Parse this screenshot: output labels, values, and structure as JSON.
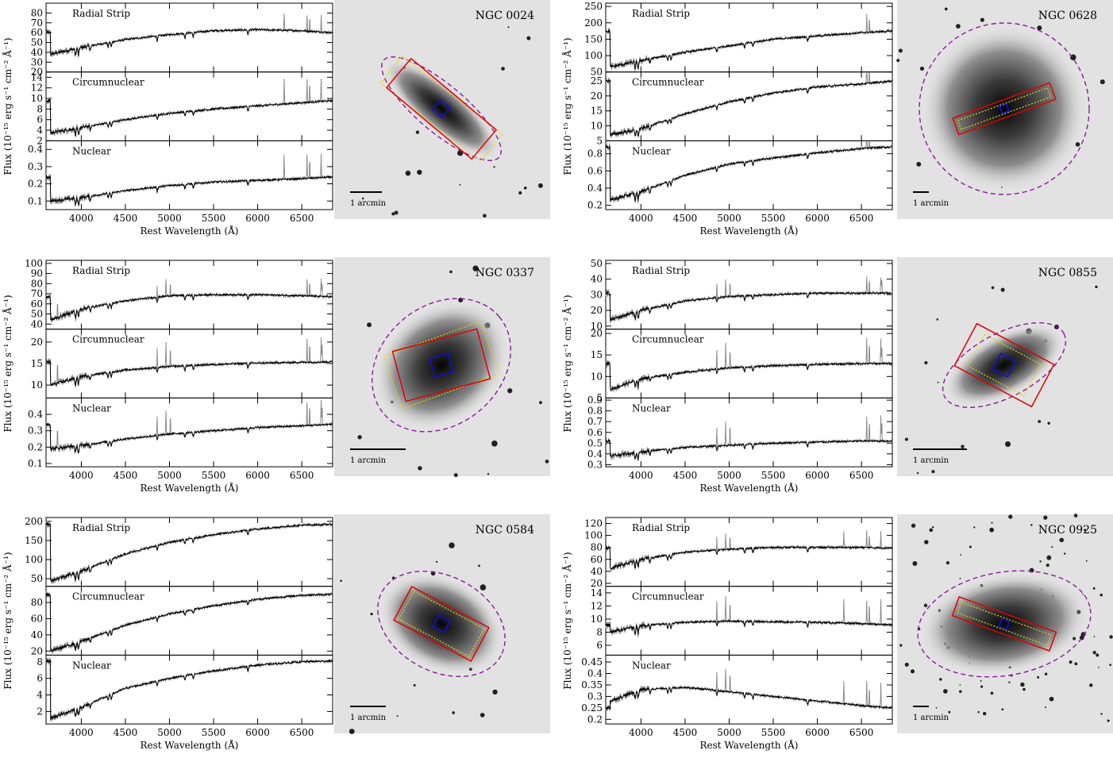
{
  "figure": {
    "ylabel": "Flux (10⁻¹⁵ erg s⁻¹ cm⁻² Å⁻¹)",
    "xlabel": "Rest Wavelength (Å)",
    "scale_label": "1 arcmin"
  },
  "chart_data": [
    {
      "type": "line",
      "galaxy": "NGC 0024",
      "xlabel": "Rest Wavelength (Å)",
      "ylabel": "Flux (10⁻¹⁵ erg s⁻¹ cm⁻² Å⁻¹)",
      "xlim": [
        3600,
        6850
      ],
      "xticks": [
        4000,
        4500,
        5000,
        5500,
        6000,
        6500
      ],
      "panels": [
        {
          "name": "Radial Strip",
          "ylim": [
            20,
            90
          ],
          "yticks": [
            20,
            30,
            40,
            50,
            60,
            70,
            80
          ],
          "x": [
            3650,
            4000,
            4500,
            5000,
            5500,
            6000,
            6500,
            6850
          ],
          "y": [
            38,
            45,
            53,
            58,
            62,
            63,
            62,
            60
          ]
        },
        {
          "name": "Circumnuclear",
          "ylim": [
            2,
            15
          ],
          "yticks": [
            2,
            4,
            6,
            8,
            10,
            12,
            14
          ],
          "x": [
            3650,
            4000,
            4500,
            5000,
            5500,
            6000,
            6500,
            6850
          ],
          "y": [
            3.5,
            4.5,
            6.0,
            7.2,
            8.0,
            8.6,
            9.2,
            9.6
          ]
        },
        {
          "name": "Nuclear",
          "ylim": [
            0.05,
            0.45
          ],
          "yticks": [
            0.1,
            0.2,
            0.3,
            0.4
          ],
          "x": [
            3650,
            4000,
            4500,
            5000,
            5500,
            6000,
            6500,
            6850
          ],
          "y": [
            0.1,
            0.12,
            0.16,
            0.19,
            0.21,
            0.22,
            0.23,
            0.24
          ]
        }
      ]
    },
    {
      "type": "line",
      "galaxy": "NGC 0628",
      "xlabel": "Rest Wavelength (Å)",
      "ylabel": "Flux (10⁻¹⁵ erg s⁻¹ cm⁻² Å⁻¹)",
      "xlim": [
        3600,
        6850
      ],
      "xticks": [
        4000,
        4500,
        5000,
        5500,
        6000,
        6500
      ],
      "panels": [
        {
          "name": "Radial Strip",
          "ylim": [
            50,
            260
          ],
          "yticks": [
            50,
            100,
            150,
            200,
            250
          ],
          "x": [
            3650,
            4000,
            4500,
            5000,
            5500,
            6000,
            6500,
            6850
          ],
          "y": [
            65,
            85,
            110,
            130,
            150,
            160,
            170,
            175
          ]
        },
        {
          "name": "Circumnuclear",
          "ylim": [
            5,
            28
          ],
          "yticks": [
            5,
            10,
            15,
            20,
            25
          ],
          "x": [
            3650,
            4000,
            4500,
            5000,
            5500,
            6000,
            6500,
            6850
          ],
          "y": [
            7,
            9,
            14,
            18,
            21,
            23,
            24,
            25
          ]
        },
        {
          "name": "Nuclear",
          "ylim": [
            0.15,
            0.95
          ],
          "yticks": [
            0.2,
            0.4,
            0.6,
            0.8
          ],
          "x": [
            3650,
            4000,
            4500,
            5000,
            5500,
            6000,
            6500,
            6850
          ],
          "y": [
            0.26,
            0.36,
            0.55,
            0.68,
            0.75,
            0.81,
            0.86,
            0.88
          ]
        }
      ]
    },
    {
      "type": "line",
      "galaxy": "NGC 0337",
      "xlabel": "Rest Wavelength (Å)",
      "ylabel": "Flux (10⁻¹⁵ erg s⁻¹ cm⁻² Å⁻¹)",
      "xlim": [
        3600,
        6850
      ],
      "xticks": [
        4000,
        4500,
        5000,
        5500,
        6000,
        6500
      ],
      "panels": [
        {
          "name": "Radial Strip",
          "ylim": [
            35,
            103
          ],
          "yticks": [
            40,
            50,
            60,
            70,
            80,
            90,
            100
          ],
          "x": [
            3650,
            4000,
            4500,
            5000,
            5500,
            6000,
            6500,
            6850
          ],
          "y": [
            44,
            55,
            63,
            68,
            69,
            69,
            68,
            67
          ]
        },
        {
          "name": "Circumnuclear",
          "ylim": [
            7,
            23
          ],
          "yticks": [
            10,
            15,
            20
          ],
          "x": [
            3650,
            4000,
            4500,
            5000,
            5500,
            6000,
            6500,
            6850
          ],
          "y": [
            10,
            12,
            13.5,
            14.3,
            14.8,
            15.1,
            15.3,
            15.4
          ]
        },
        {
          "name": "Nuclear",
          "ylim": [
            0.08,
            0.5
          ],
          "yticks": [
            0.1,
            0.2,
            0.3,
            0.4
          ],
          "x": [
            3650,
            4000,
            4500,
            5000,
            5500,
            6000,
            6500,
            6850
          ],
          "y": [
            0.19,
            0.21,
            0.25,
            0.28,
            0.3,
            0.32,
            0.33,
            0.34
          ]
        }
      ]
    },
    {
      "type": "line",
      "galaxy": "NGC 0855",
      "xlabel": "Rest Wavelength (Å)",
      "ylabel": "Flux (10⁻¹⁵ erg s⁻¹ cm⁻² Å⁻¹)",
      "xlim": [
        3600,
        6850
      ],
      "xticks": [
        4000,
        4500,
        5000,
        5500,
        6000,
        6500
      ],
      "panels": [
        {
          "name": "Radial Strip",
          "ylim": [
            8,
            52
          ],
          "yticks": [
            10,
            20,
            30,
            40,
            50
          ],
          "x": [
            3650,
            4000,
            4500,
            5000,
            5500,
            6000,
            6500,
            6850
          ],
          "y": [
            14,
            20,
            26,
            29,
            30,
            31,
            31,
            31
          ]
        },
        {
          "name": "Circumnuclear",
          "ylim": [
            5,
            21
          ],
          "yticks": [
            5,
            10,
            15,
            20
          ],
          "x": [
            3650,
            4000,
            4500,
            5000,
            5500,
            6000,
            6500,
            6850
          ],
          "y": [
            7,
            9.5,
            11,
            12,
            12.5,
            12.8,
            13,
            13
          ]
        },
        {
          "name": "Nuclear",
          "ylim": [
            0.28,
            0.92
          ],
          "yticks": [
            0.3,
            0.4,
            0.5,
            0.6,
            0.7,
            0.8,
            0.9
          ],
          "x": [
            3650,
            4000,
            4500,
            5000,
            5500,
            6000,
            6500,
            6850
          ],
          "y": [
            0.38,
            0.42,
            0.46,
            0.48,
            0.5,
            0.51,
            0.52,
            0.52
          ]
        }
      ]
    },
    {
      "type": "line",
      "galaxy": "NGC 0584",
      "xlabel": "Rest Wavelength (Å)",
      "ylabel": "Flux (10⁻¹⁵ erg s⁻¹ cm⁻² Å⁻¹)",
      "xlim": [
        3600,
        6850
      ],
      "xticks": [
        4000,
        4500,
        5000,
        5500,
        6000,
        6500
      ],
      "panels": [
        {
          "name": "Radial Strip",
          "ylim": [
            30,
            210
          ],
          "yticks": [
            50,
            100,
            150,
            200
          ],
          "x": [
            3650,
            4000,
            4500,
            5000,
            5500,
            6000,
            6500,
            6850
          ],
          "y": [
            45,
            70,
            115,
            145,
            165,
            180,
            190,
            192
          ]
        },
        {
          "name": "Circumnuclear",
          "ylim": [
            15,
            100
          ],
          "yticks": [
            20,
            40,
            60,
            80
          ],
          "x": [
            3650,
            4000,
            4500,
            5000,
            5500,
            6000,
            6500,
            6850
          ],
          "y": [
            20,
            32,
            52,
            66,
            76,
            84,
            89,
            90
          ]
        },
        {
          "name": "Nuclear",
          "ylim": [
            0.5,
            8.8
          ],
          "yticks": [
            2,
            4,
            6,
            8
          ],
          "x": [
            3650,
            4000,
            4500,
            5000,
            5500,
            6000,
            6500,
            6850
          ],
          "y": [
            1.2,
            2.5,
            4.8,
            6.0,
            6.9,
            7.6,
            8.0,
            8.1
          ]
        }
      ]
    },
    {
      "type": "line",
      "galaxy": "NGC 0925",
      "xlabel": "Rest Wavelength (Å)",
      "ylabel": "Flux (10⁻¹⁵ erg s⁻¹ cm⁻² Å⁻¹)",
      "xlim": [
        3600,
        6850
      ],
      "xticks": [
        4000,
        4500,
        5000,
        5500,
        6000,
        6500
      ],
      "panels": [
        {
          "name": "Radial Strip",
          "ylim": [
            15,
            130
          ],
          "yticks": [
            20,
            40,
            60,
            80,
            100,
            120
          ],
          "x": [
            3650,
            4000,
            4500,
            5000,
            5500,
            6000,
            6500,
            6850
          ],
          "y": [
            45,
            60,
            72,
            77,
            80,
            80,
            80,
            79
          ]
        },
        {
          "name": "Circumnuclear",
          "ylim": [
            4.5,
            15
          ],
          "yticks": [
            6,
            8,
            10,
            12,
            14
          ],
          "x": [
            3650,
            4000,
            4500,
            5000,
            5500,
            6000,
            6500,
            6850
          ],
          "y": [
            8,
            9,
            9.5,
            9.7,
            9.6,
            9.5,
            9.3,
            9.1
          ]
        },
        {
          "name": "Nuclear",
          "ylim": [
            0.18,
            0.48
          ],
          "yticks": [
            0.2,
            0.25,
            0.3,
            0.35,
            0.4,
            0.45
          ],
          "x": [
            3650,
            4000,
            4500,
            5000,
            5500,
            6000,
            6500,
            6850
          ],
          "y": [
            0.28,
            0.33,
            0.34,
            0.32,
            0.3,
            0.28,
            0.26,
            0.25
          ]
        }
      ]
    }
  ]
}
